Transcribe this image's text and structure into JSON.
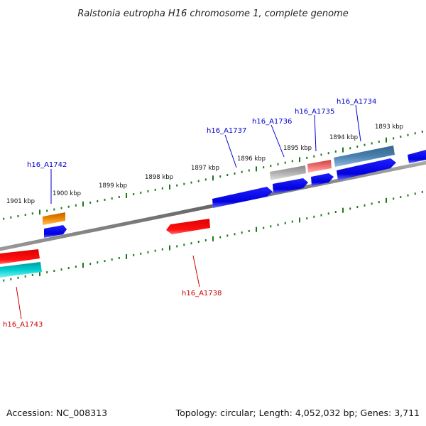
{
  "title": "Ralstonia eutropha H16 chromosome 1, complete genome",
  "accession": "Accession: NC_008313",
  "topology": "Topology: circular; Length: 4,052,032 bp; Genes: 3,711",
  "scale_labels": [
    "1901 kbp",
    "1900 kbp",
    "1899 kbp",
    "1898 kbp",
    "1897 kbp",
    "1896 kbp",
    "1895 kbp",
    "1894 kbp",
    "1893 kbp"
  ],
  "gene_labels": {
    "h16_A1742": "h16_A1742",
    "h16_A1737": "h16_A1737",
    "h16_A1736": "h16_A1736",
    "h16_A1735": "h16_A1735",
    "h16_A1734": "h16_A1734",
    "h16_A1738": "h16_A1738",
    "h16_A1743": "h16_A1743"
  },
  "colors": {
    "forward_label": "#0000cc",
    "reverse_label": "#cc0000",
    "backbone": "#888888",
    "tick": "#1a7a1a",
    "gene_blue": "#0000ee",
    "gene_red": "#ee0000",
    "gene_orange": "#ee8800",
    "gene_cyan": "#00cccc",
    "gene_grey": "#aaaaaa",
    "gene_pink": "#ee6666",
    "gene_steel": "#4477aa"
  }
}
